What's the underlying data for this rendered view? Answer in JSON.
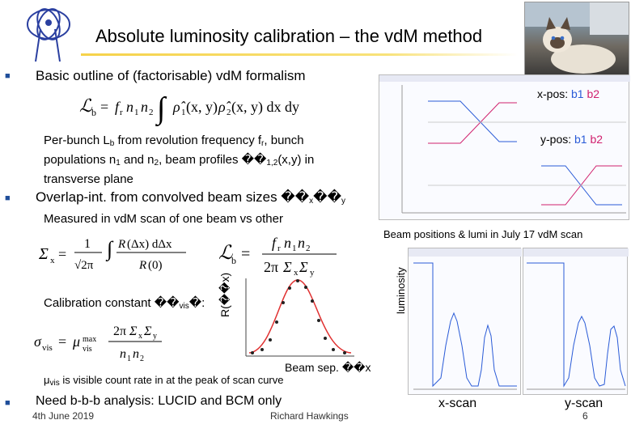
{
  "header": {
    "title": "Absolute luminosity calibration – the vdM method"
  },
  "bullets": {
    "b1": "Basic outline of (factorisable) vdM formalism",
    "b1_sub_1": "Per-bunch L",
    "b1_sub_1_sub": "b",
    "b1_sub_2": " from revolution frequency f",
    "b1_sub_2_sub": "r",
    "b1_sub_3": ", bunch",
    "b1_sub_4": "populations n",
    "b1_sub_4_sub": "1",
    "b1_sub_5": " and n",
    "b1_sub_5_sub": "2",
    "b1_sub_6": ", beam profiles ��",
    "b1_sub_6_sub": "1,2",
    "b1_sub_7": "(x,y) in",
    "b1_sub_8": "transverse plane",
    "b2": "Overlap-int. from convolved beam sizes ��",
    "b2_sub_x": "x",
    "b2_mid": "��",
    "b2_sub_y": "y",
    "b2_line": "Measured in vdM scan of one beam vs other",
    "calib": "Calibration constant ��",
    "calib_sub": "vis",
    "calib_tail": "�:",
    "mu_def_1": "μ",
    "mu_def_sub": "vis",
    "mu_def_2": " is visible count rate in at the peak of scan curve",
    "b3": "Need b-b-b analysis: LUCID and BCM only"
  },
  "plot_labels": {
    "r_axis": "R(��x)",
    "beam_sep": "Beam sep. ��x"
  },
  "right_panels": {
    "xpos_prefix": "x-pos: ",
    "ypos_prefix": "y-pos: ",
    "b1": "b1",
    "b2": "b2",
    "caption": "Beam positions & lumi in July 17 vdM scan",
    "lumi_axis": "luminosity",
    "x_scan": "x-scan",
    "y_scan": "y-scan"
  },
  "footer": {
    "date": "4th June 2019",
    "author": "Richard Hawkings",
    "page": "6"
  },
  "colors": {
    "b1": "#2a5bd7",
    "b2": "#d0206e",
    "bullet": "#1f4e9a"
  }
}
